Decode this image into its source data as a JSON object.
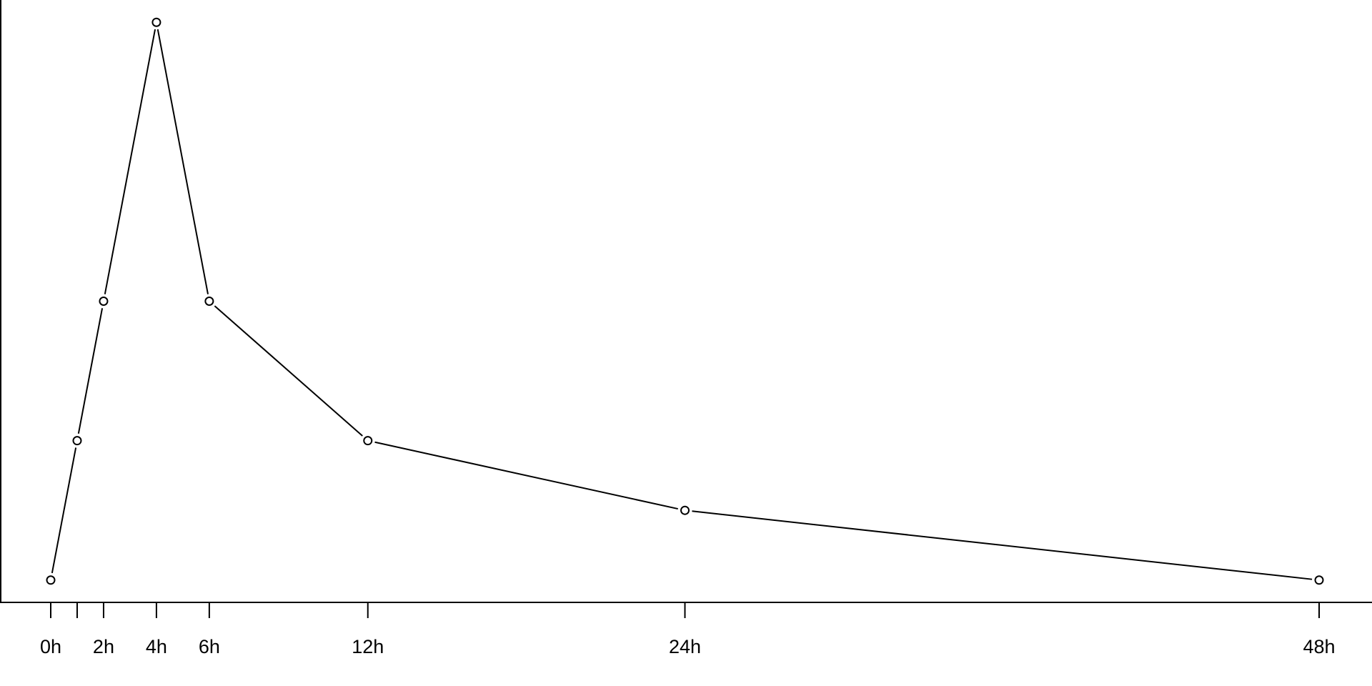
{
  "chart_data": {
    "type": "line",
    "title": "",
    "xlabel": "",
    "ylabel": "",
    "x": [
      0,
      1,
      2,
      4,
      6,
      12,
      24,
      48
    ],
    "series": [
      {
        "values": [
          0,
          2,
          4,
          8,
          4,
          2,
          1,
          0
        ]
      }
    ],
    "xticks": [
      0,
      1,
      2,
      4,
      6,
      12,
      24,
      48
    ],
    "xtick_labels": [
      "0h",
      "",
      "2h",
      "4h",
      "6h",
      "12h",
      "24h",
      "48h"
    ],
    "xlim": [
      -1.92,
      49.92
    ],
    "ylim": [
      -0.32,
      8.32
    ],
    "y_axis_labels_shown": false,
    "grid": false,
    "marker": "open-circle",
    "line_color": "#000000"
  }
}
